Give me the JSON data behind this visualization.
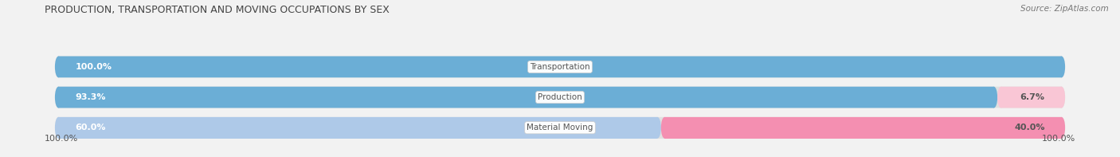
{
  "title": "PRODUCTION, TRANSPORTATION AND MOVING OCCUPATIONS BY SEX",
  "source": "Source: ZipAtlas.com",
  "categories": [
    "Transportation",
    "Production",
    "Material Moving"
  ],
  "male_values": [
    100.0,
    93.3,
    60.0
  ],
  "female_values": [
    0.0,
    6.7,
    40.0
  ],
  "male_color": "#6baed6",
  "male_color_light": "#aec9e8",
  "female_color": "#f48fb1",
  "female_color_light": "#f9c6d5",
  "bg_color": "#f2f2f2",
  "bar_bg_color": "#e0e0e0",
  "text_white": "#ffffff",
  "text_dark": "#555555",
  "text_title": "#444444",
  "figsize": [
    14.06,
    1.97
  ],
  "dpi": 100
}
